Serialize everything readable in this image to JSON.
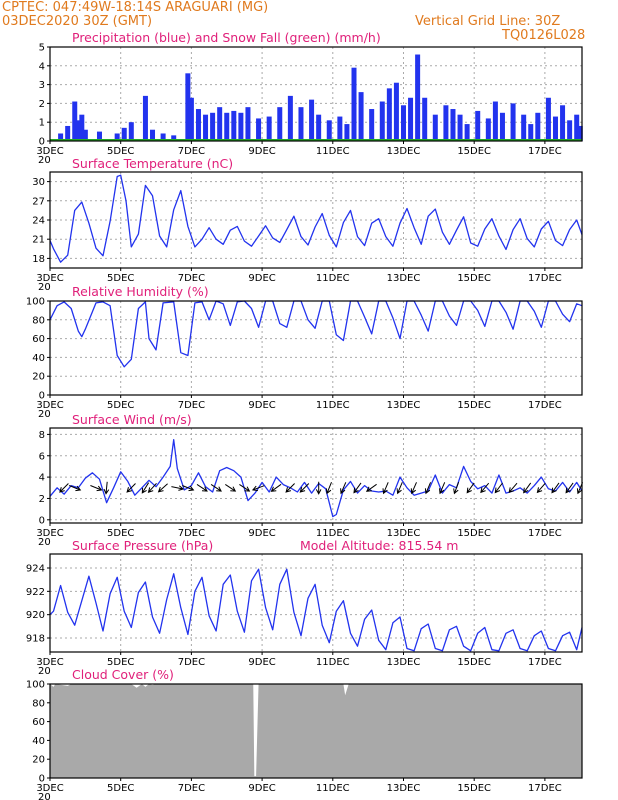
{
  "header": {
    "station_line": "CPTEC:   047:49W-18:14S   ARAGUARI (MG)",
    "run_line": "03DEC2020 30Z (GMT)",
    "grid_note": "Vertical Grid Line: 30Z",
    "code": "TQ0126L028"
  },
  "x_axis": {
    "tick_labels": [
      "3DEC",
      "5DEC",
      "7DEC",
      "9DEC",
      "11DEC",
      "13DEC",
      "15DEC",
      "17DEC"
    ],
    "tick_days": [
      3,
      5,
      7,
      9,
      11,
      13,
      15,
      17
    ],
    "year_fragment": "20",
    "start_day": 3,
    "end_day": 18.05
  },
  "colors": {
    "title": "#e0207a",
    "header": "#e07a1e",
    "series": "#2233ee",
    "snow": "#22aa22",
    "cloud": "#a9a9a9"
  },
  "chart_data": [
    {
      "id": "precip",
      "type": "bar",
      "title": "Precipitation (blue) and Snow Fall (green) (mm/h)",
      "ylim": [
        0,
        5
      ],
      "yticks": [
        0,
        1,
        2,
        3,
        4,
        5
      ],
      "grid": true,
      "series": [
        {
          "name": "Precipitation",
          "x": [
            3.3,
            3.5,
            3.7,
            3.8,
            3.9,
            4.0,
            4.4,
            4.9,
            5.1,
            5.3,
            5.7,
            5.9,
            6.2,
            6.5,
            6.9,
            7.0,
            7.2,
            7.4,
            7.6,
            7.8,
            8.0,
            8.2,
            8.4,
            8.6,
            8.9,
            9.2,
            9.5,
            9.8,
            10.1,
            10.4,
            10.6,
            10.9,
            11.2,
            11.4,
            11.6,
            11.8,
            12.1,
            12.4,
            12.6,
            12.8,
            13.0,
            13.2,
            13.4,
            13.6,
            13.9,
            14.2,
            14.4,
            14.6,
            14.8,
            15.1,
            15.4,
            15.6,
            15.8,
            16.1,
            16.4,
            16.6,
            16.8,
            17.1,
            17.3,
            17.5,
            17.7,
            17.9,
            18.0
          ],
          "values": [
            0.4,
            0.8,
            2.1,
            1.1,
            1.4,
            0.6,
            0.5,
            0.4,
            0.7,
            1.0,
            2.4,
            0.6,
            0.4,
            0.3,
            3.6,
            2.3,
            1.7,
            1.4,
            1.5,
            1.8,
            1.5,
            1.6,
            1.5,
            1.8,
            1.2,
            1.3,
            1.8,
            2.4,
            1.8,
            2.2,
            1.4,
            1.1,
            1.3,
            0.9,
            3.9,
            2.6,
            1.7,
            2.1,
            2.8,
            3.1,
            1.9,
            2.3,
            4.6,
            2.3,
            1.4,
            1.9,
            1.7,
            1.4,
            0.9,
            1.6,
            1.2,
            2.1,
            1.5,
            2.0,
            1.4,
            0.9,
            1.5,
            2.3,
            1.3,
            1.9,
            1.1,
            1.4,
            0.8
          ]
        },
        {
          "name": "Snow Fall",
          "x": [
            3,
            18.05
          ],
          "values": [
            0,
            0
          ]
        }
      ]
    },
    {
      "id": "temp",
      "type": "line",
      "title": "Surface Temperature (nC)",
      "ylim": [
        16.5,
        31.5
      ],
      "yticks": [
        18,
        21,
        24,
        27,
        30
      ],
      "grid": true,
      "series": [
        {
          "name": "",
          "x": [
            3.0,
            3.1,
            3.3,
            3.5,
            3.7,
            3.9,
            4.1,
            4.3,
            4.5,
            4.7,
            4.9,
            5.0,
            5.15,
            5.3,
            5.5,
            5.7,
            5.9,
            6.1,
            6.3,
            6.5,
            6.7,
            6.9,
            7.1,
            7.3,
            7.5,
            7.7,
            7.9,
            8.1,
            8.3,
            8.5,
            8.7,
            8.9,
            9.1,
            9.3,
            9.5,
            9.7,
            9.9,
            10.1,
            10.3,
            10.5,
            10.7,
            10.9,
            11.1,
            11.3,
            11.5,
            11.7,
            11.9,
            12.1,
            12.3,
            12.5,
            12.7,
            12.9,
            13.1,
            13.3,
            13.5,
            13.7,
            13.9,
            14.1,
            14.3,
            14.5,
            14.7,
            14.9,
            15.1,
            15.3,
            15.5,
            15.7,
            15.9,
            16.1,
            16.3,
            16.5,
            16.7,
            16.9,
            17.1,
            17.3,
            17.5,
            17.7,
            17.9,
            18.05
          ],
          "values": [
            20.8,
            19.5,
            17.4,
            18.5,
            25.5,
            26.8,
            23.5,
            19.6,
            18.4,
            23.8,
            30.8,
            31.0,
            27.0,
            19.8,
            21.8,
            29.4,
            27.8,
            21.5,
            19.8,
            25.6,
            28.6,
            23.0,
            19.8,
            21.0,
            22.8,
            21.0,
            20.2,
            22.4,
            23.0,
            20.7,
            19.9,
            21.5,
            23.1,
            21.2,
            20.5,
            22.5,
            24.6,
            21.4,
            20.1,
            22.9,
            25.0,
            21.6,
            19.8,
            23.6,
            25.5,
            21.4,
            20.0,
            23.5,
            24.2,
            21.4,
            19.9,
            23.5,
            25.8,
            22.8,
            20.2,
            24.6,
            25.7,
            22.1,
            20.2,
            22.4,
            24.5,
            20.4,
            19.9,
            22.6,
            24.2,
            21.5,
            19.4,
            22.5,
            24.2,
            21.1,
            19.8,
            22.6,
            23.8,
            20.8,
            20.0,
            22.5,
            24.0,
            21.7
          ]
        }
      ]
    },
    {
      "id": "rh",
      "type": "line",
      "title": "Relative Humidity (%)",
      "ylim": [
        0,
        100
      ],
      "yticks": [
        0,
        20,
        40,
        60,
        80,
        100
      ],
      "grid": true,
      "series": [
        {
          "name": "",
          "x": [
            3.0,
            3.2,
            3.4,
            3.6,
            3.8,
            3.9,
            4.0,
            4.3,
            4.5,
            4.7,
            4.9,
            5.1,
            5.3,
            5.5,
            5.7,
            5.8,
            6.0,
            6.2,
            6.5,
            6.7,
            6.9,
            7.1,
            7.3,
            7.5,
            7.7,
            7.9,
            8.1,
            8.3,
            8.5,
            8.7,
            8.9,
            9.1,
            9.3,
            9.5,
            9.7,
            9.9,
            10.1,
            10.3,
            10.5,
            10.7,
            10.9,
            11.1,
            11.3,
            11.5,
            11.7,
            11.9,
            12.1,
            12.3,
            12.5,
            12.7,
            12.9,
            13.1,
            13.3,
            13.5,
            13.7,
            13.9,
            14.1,
            14.3,
            14.5,
            14.7,
            14.9,
            15.1,
            15.3,
            15.5,
            15.7,
            15.9,
            16.1,
            16.3,
            16.5,
            16.7,
            16.9,
            17.1,
            17.3,
            17.5,
            17.7,
            17.9,
            18.05
          ],
          "values": [
            80,
            95,
            99,
            92,
            68,
            62,
            70,
            98,
            99,
            95,
            42,
            30,
            38,
            92,
            99,
            60,
            48,
            98,
            99,
            45,
            42,
            98,
            99,
            80,
            100,
            97,
            74,
            99,
            100,
            92,
            72,
            100,
            100,
            76,
            72,
            100,
            100,
            80,
            71,
            100,
            100,
            64,
            58,
            100,
            100,
            83,
            65,
            100,
            100,
            82,
            60,
            100,
            100,
            85,
            68,
            100,
            100,
            84,
            74,
            100,
            100,
            90,
            73,
            100,
            100,
            88,
            70,
            100,
            100,
            89,
            72,
            100,
            100,
            86,
            78,
            97,
            95
          ]
        }
      ]
    },
    {
      "id": "wind",
      "type": "line",
      "title": "Surface Wind (m/s)",
      "ylim": [
        -0.3,
        8.6
      ],
      "yticks": [
        0,
        2,
        4,
        6,
        8
      ],
      "grid": true,
      "series": [
        {
          "name": "",
          "x": [
            3.0,
            3.2,
            3.4,
            3.6,
            3.8,
            4.0,
            4.2,
            4.4,
            4.6,
            4.8,
            5.0,
            5.2,
            5.4,
            5.6,
            5.8,
            6.0,
            6.2,
            6.4,
            6.5,
            6.6,
            6.8,
            7.0,
            7.2,
            7.4,
            7.6,
            7.8,
            8.0,
            8.2,
            8.4,
            8.6,
            8.8,
            9.0,
            9.2,
            9.4,
            9.6,
            9.8,
            10.0,
            10.2,
            10.4,
            10.6,
            10.8,
            11.0,
            11.1,
            11.3,
            11.5,
            11.7,
            11.9,
            12.1,
            12.3,
            12.5,
            12.7,
            12.9,
            13.1,
            13.3,
            13.5,
            13.7,
            13.9,
            14.1,
            14.3,
            14.5,
            14.7,
            14.9,
            15.1,
            15.3,
            15.5,
            15.7,
            15.9,
            16.1,
            16.3,
            16.5,
            16.7,
            16.9,
            17.1,
            17.3,
            17.5,
            17.7,
            17.9,
            18.05
          ],
          "values": [
            2.2,
            3.0,
            2.4,
            3.2,
            3.0,
            3.9,
            4.4,
            3.8,
            1.6,
            3.0,
            4.5,
            3.6,
            2.3,
            3.0,
            3.7,
            3.1,
            4.0,
            5.0,
            7.5,
            4.8,
            2.8,
            3.2,
            4.4,
            3.1,
            2.6,
            4.6,
            4.9,
            4.6,
            4.0,
            1.8,
            2.5,
            3.5,
            2.6,
            4.0,
            3.3,
            3.0,
            2.6,
            3.5,
            2.5,
            3.4,
            2.9,
            0.3,
            0.5,
            2.8,
            3.6,
            2.5,
            3.2,
            2.7,
            2.6,
            2.7,
            2.3,
            4.0,
            3.0,
            2.3,
            2.5,
            2.7,
            4.2,
            2.5,
            3.3,
            3.0,
            5.0,
            3.6,
            2.9,
            3.2,
            2.5,
            4.2,
            2.5,
            2.7,
            3.0,
            2.5,
            3.2,
            4.0,
            2.9,
            2.7,
            3.5,
            2.6,
            3.5,
            2.7
          ]
        }
      ],
      "wind_vectors": {
        "x": [
          3.4,
          3.7,
          4.3,
          4.6,
          5.3,
          5.7,
          5.9,
          6.2,
          6.6,
          6.9,
          7.3,
          7.7,
          8.1,
          8.5,
          8.9,
          9.4,
          9.8,
          10.2,
          10.6,
          10.9,
          11.3,
          11.7,
          12.1,
          12.5,
          12.9,
          13.3,
          13.7,
          14.1,
          14.5,
          14.9,
          15.3,
          15.7,
          16.1,
          16.5,
          16.9,
          17.3,
          17.7,
          18.0
        ],
        "u": [
          0.7,
          -1.0,
          -1.0,
          0.1,
          0.5,
          0.5,
          0.9,
          0.9,
          -1.0,
          -1.0,
          -0.6,
          -0.6,
          -0.6,
          -0.6,
          0.8,
          0.7,
          0.5,
          0.5,
          0.0,
          0.2,
          0.3,
          0.5,
          0.7,
          0.3,
          0.3,
          0.3,
          0.3,
          0.3,
          0.3,
          0.5,
          0.6,
          0.6,
          0.6,
          0.5,
          0.6,
          0.5,
          0.5,
          0.3
        ],
        "v": [
          0.7,
          0.4,
          0.4,
          1.0,
          0.5,
          0.8,
          1.0,
          0.8,
          0.2,
          0.4,
          0.4,
          0.4,
          0.4,
          0.4,
          0.3,
          0.5,
          0.5,
          0.5,
          0.6,
          0.5,
          0.7,
          0.7,
          0.5,
          0.7,
          0.7,
          0.7,
          0.7,
          0.7,
          0.8,
          0.7,
          0.7,
          0.8,
          0.7,
          0.7,
          0.7,
          0.7,
          0.7,
          0.7
        ]
      }
    },
    {
      "id": "pres",
      "type": "line",
      "title": "Surface Pressure (hPa)",
      "subtitle": "Model Altitude: 815.54 m",
      "ylim": [
        916.8,
        925.2
      ],
      "yticks": [
        918,
        920,
        922,
        924
      ],
      "grid": true,
      "series": [
        {
          "name": "",
          "x": [
            3.0,
            3.1,
            3.3,
            3.5,
            3.7,
            3.9,
            4.1,
            4.3,
            4.5,
            4.7,
            4.9,
            5.1,
            5.3,
            5.5,
            5.7,
            5.9,
            6.1,
            6.3,
            6.5,
            6.7,
            6.9,
            7.1,
            7.3,
            7.5,
            7.7,
            7.9,
            8.1,
            8.3,
            8.5,
            8.7,
            8.9,
            9.1,
            9.3,
            9.5,
            9.7,
            9.9,
            10.1,
            10.3,
            10.5,
            10.7,
            10.9,
            11.1,
            11.3,
            11.5,
            11.7,
            11.9,
            12.1,
            12.3,
            12.5,
            12.7,
            12.9,
            13.1,
            13.3,
            13.5,
            13.7,
            13.9,
            14.1,
            14.3,
            14.5,
            14.7,
            14.9,
            15.1,
            15.3,
            15.5,
            15.7,
            15.9,
            16.1,
            16.3,
            16.5,
            16.7,
            16.9,
            17.1,
            17.3,
            17.5,
            17.7,
            17.9,
            18.05
          ],
          "values": [
            920.0,
            920.3,
            922.5,
            920.2,
            919.1,
            921.2,
            923.3,
            921.0,
            918.6,
            921.8,
            923.2,
            920.3,
            918.9,
            921.9,
            922.8,
            919.8,
            918.4,
            921.3,
            923.5,
            920.6,
            918.3,
            922.0,
            923.2,
            919.9,
            918.6,
            922.6,
            923.4,
            920.3,
            918.5,
            922.9,
            923.9,
            920.6,
            918.7,
            922.6,
            923.9,
            920.2,
            918.2,
            921.4,
            922.6,
            919.1,
            917.6,
            920.3,
            921.2,
            918.4,
            917.3,
            919.6,
            920.4,
            917.8,
            917.0,
            919.3,
            919.8,
            917.1,
            916.9,
            918.8,
            919.2,
            917.1,
            916.9,
            918.7,
            919.0,
            917.3,
            916.9,
            918.4,
            918.9,
            917.0,
            916.9,
            918.4,
            918.7,
            917.1,
            916.9,
            918.2,
            918.6,
            917.1,
            916.9,
            918.2,
            918.5,
            917.0,
            918.9
          ]
        }
      ]
    },
    {
      "id": "cloud",
      "type": "area",
      "title": "Cloud Cover (%)",
      "ylim": [
        0,
        100
      ],
      "yticks": [
        0,
        20,
        40,
        60,
        80,
        100
      ],
      "grid": false,
      "series": [
        {
          "name": "",
          "x": [
            3.0,
            3.1,
            3.15,
            3.5,
            3.6,
            5.3,
            5.45,
            5.6,
            5.7,
            5.8,
            5.9,
            6.0,
            8.75,
            8.78,
            8.83,
            8.9,
            10.8,
            11.3,
            11.35,
            11.45,
            13.6,
            15.5,
            16.2,
            17.0,
            18.05
          ],
          "values": [
            100,
            97,
            100,
            98,
            100,
            100,
            96,
            100,
            97,
            100,
            99,
            100,
            100,
            2,
            2,
            100,
            100,
            100,
            88,
            100,
            100,
            100,
            100,
            100,
            100
          ]
        }
      ]
    }
  ]
}
